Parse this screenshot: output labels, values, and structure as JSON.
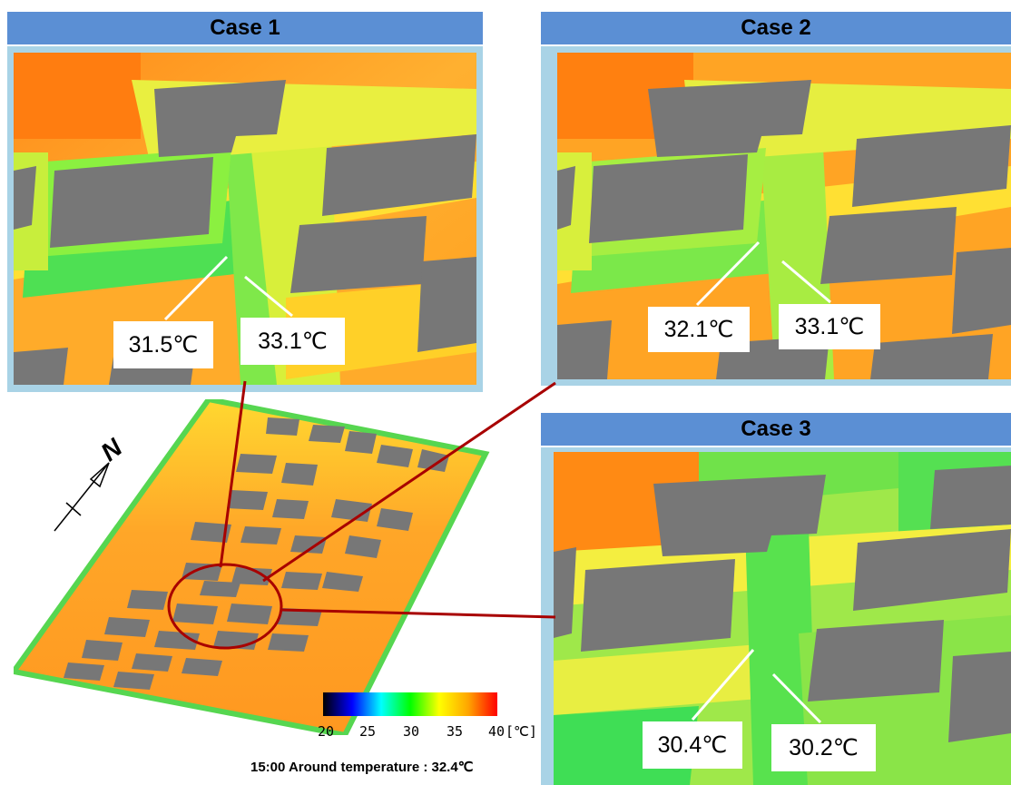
{
  "cases": [
    {
      "title": "Case 1",
      "temps": [
        "31.5℃",
        "33.1℃"
      ]
    },
    {
      "title": "Case 2",
      "temps": [
        "32.1℃",
        "33.1℃"
      ]
    },
    {
      "title": "Case 3",
      "temps": [
        "30.4℃",
        "30.2℃"
      ]
    }
  ],
  "compass": {
    "north_label": "N"
  },
  "legend": {
    "ticks": [
      "20",
      "25",
      "30",
      "35",
      "40"
    ],
    "unit": "[℃]",
    "gradient_colors": [
      "#000000",
      "#0000ff",
      "#00ffff",
      "#00ff00",
      "#ffff00",
      "#ffa500",
      "#ff0000"
    ],
    "range": [
      20,
      40
    ]
  },
  "footer": "15:00 Around temperature : 32.4℃",
  "colors": {
    "header_bg": "#5b8fd4",
    "frame": "#a9d3e6",
    "callout_line": "#a80000",
    "building": "#777777"
  }
}
